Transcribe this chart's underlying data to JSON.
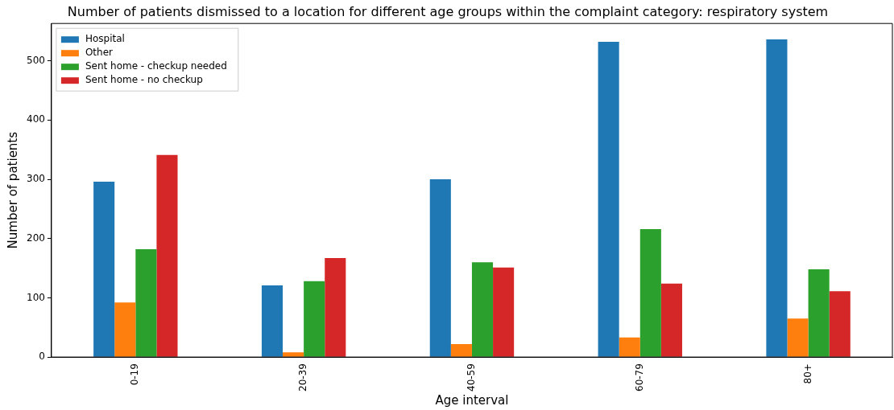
{
  "chart_data": {
    "type": "bar",
    "title": "Number of patients dismissed to a location for different age groups within the complaint category: respiratory system",
    "xlabel": "Age interval",
    "ylabel": "Number of patients",
    "categories": [
      "0-19",
      "20-39",
      "40-59",
      "60-79",
      "80+"
    ],
    "series": [
      {
        "name": "Hospital",
        "color": "#1f77b4",
        "values": [
          296,
          121,
          300,
          532,
          536
        ]
      },
      {
        "name": "Other",
        "color": "#ff7f0e",
        "values": [
          92,
          8,
          22,
          33,
          65
        ]
      },
      {
        "name": "Sent home - checkup needed",
        "color": "#2ca02c",
        "values": [
          182,
          128,
          160,
          216,
          148
        ]
      },
      {
        "name": "Sent home - no checkup",
        "color": "#d62728",
        "values": [
          341,
          167,
          151,
          124,
          111
        ]
      }
    ],
    "ylim": [
      0,
      563
    ],
    "yticks": [
      0,
      100,
      200,
      300,
      400,
      500
    ],
    "grid": false,
    "legend": "top left"
  }
}
